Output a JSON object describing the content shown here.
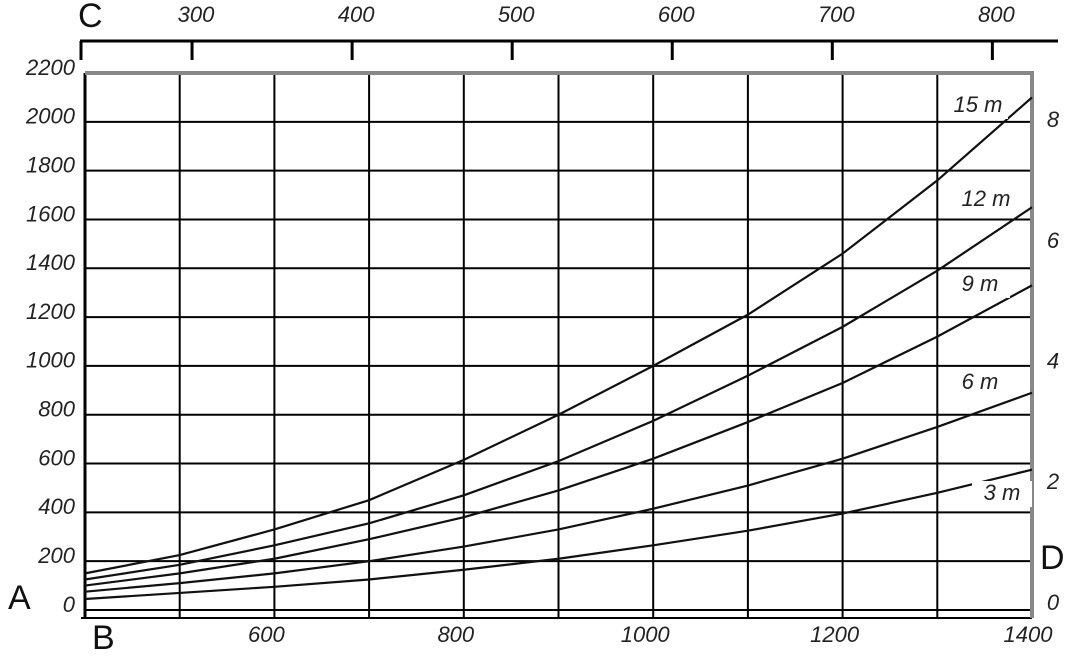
{
  "chart_data": {
    "type": "line",
    "x_label": "B",
    "y_label": "A",
    "x2_label": "C",
    "y2_label": "D",
    "x": [
      400,
      500,
      600,
      700,
      800,
      900,
      1000,
      1100,
      1200,
      1300,
      1400
    ],
    "xlim": [
      400,
      1400
    ],
    "xticks": [
      600,
      800,
      1000,
      1200,
      1400
    ],
    "xminor": [
      500,
      700,
      900,
      1100,
      1300
    ],
    "ylim": [
      0,
      2200
    ],
    "yticks": [
      0,
      200,
      400,
      600,
      800,
      1000,
      1200,
      1400,
      1600,
      1800,
      2000,
      2200
    ],
    "x2lim": [
      230,
      841
    ],
    "x2ticks": [
      300,
      400,
      500,
      600,
      700,
      800
    ],
    "y2lim": [
      -0.1,
      8.8
    ],
    "y2ticks": [
      0,
      2,
      4,
      6,
      8
    ],
    "grid": true,
    "series": [
      {
        "name": "15 m",
        "color": "#111111",
        "values": [
          150,
          225,
          330,
          450,
          615,
          800,
          1000,
          1210,
          1460,
          1760,
          2100
        ]
      },
      {
        "name": "12 m",
        "color": "#111111",
        "values": [
          125,
          185,
          265,
          355,
          470,
          610,
          775,
          960,
          1160,
          1390,
          1650
        ]
      },
      {
        "name": "9 m",
        "color": "#111111",
        "values": [
          100,
          150,
          210,
          290,
          380,
          490,
          620,
          770,
          930,
          1120,
          1330
        ]
      },
      {
        "name": "6 m",
        "color": "#111111",
        "values": [
          75,
          110,
          150,
          200,
          260,
          330,
          415,
          510,
          620,
          750,
          890
        ]
      },
      {
        "name": "3 m",
        "color": "#111111",
        "values": [
          45,
          70,
          95,
          125,
          165,
          210,
          265,
          325,
          395,
          480,
          575
        ]
      }
    ]
  }
}
